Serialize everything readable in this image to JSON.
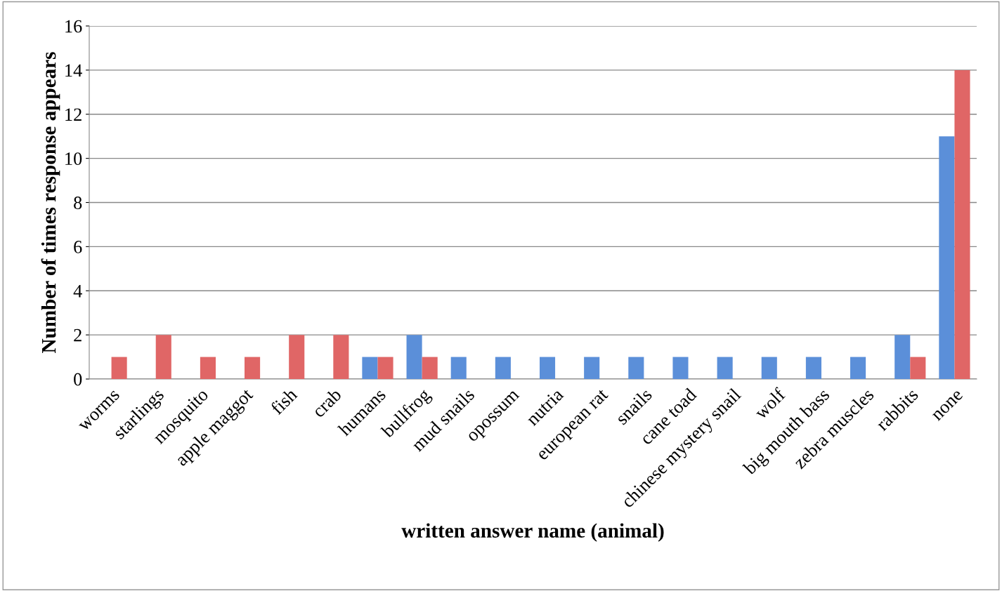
{
  "chart_data": {
    "type": "bar",
    "xlabel": "written answer name (animal)",
    "ylabel": "Number of times response appears",
    "categories": [
      "worms",
      "starlings",
      "mosquito",
      "apple maggot",
      "fish",
      "crab",
      "humans",
      "bullfrog",
      "mud snails",
      "opossum",
      "nutria",
      "european rat",
      "snails",
      "cane toad",
      "chinese mystery snail",
      "wolf",
      "big mouth bass",
      "zebra muscles",
      "rabbits",
      "none"
    ],
    "series": [
      {
        "color": "#5b8fd9",
        "values": [
          0,
          0,
          0,
          0,
          0,
          0,
          1,
          2,
          1,
          1,
          1,
          1,
          1,
          1,
          1,
          1,
          1,
          1,
          2,
          11
        ]
      },
      {
        "color": "#e06666",
        "values": [
          1,
          2,
          1,
          1,
          2,
          2,
          1,
          1,
          0,
          0,
          0,
          0,
          0,
          0,
          0,
          0,
          0,
          0,
          1,
          14
        ]
      }
    ],
    "ylim": [
      0,
      16
    ],
    "yticks": [
      0,
      2,
      4,
      6,
      8,
      10,
      12,
      14,
      16
    ],
    "grid": "y"
  }
}
